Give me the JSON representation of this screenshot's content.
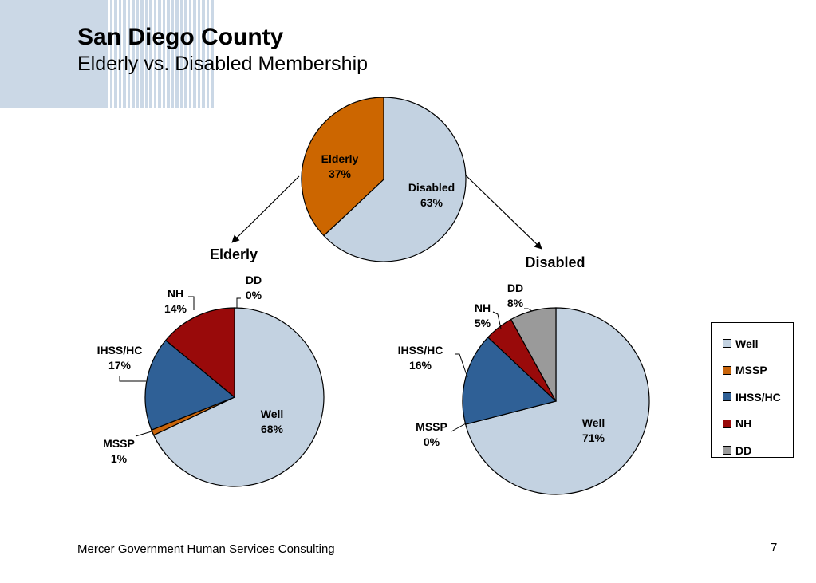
{
  "slide": {
    "title": "San Diego County",
    "subtitle": "Elderly vs. Disabled Membership",
    "footer": "Mercer Government Human Services Consulting",
    "page_number": "7"
  },
  "colors": {
    "Well": "#c3d2e1",
    "MSSP": "#c8640a",
    "IHSS/HC": "#2f6096",
    "NH": "#990a0a",
    "DD": "#9a9a9a",
    "Elderly": "#cc6600",
    "Disabled": "#c3d2e1",
    "decor": "#cbd8e6"
  },
  "legend": {
    "items": [
      "Well",
      "MSSP",
      "IHSS/HC",
      "NH",
      "DD"
    ]
  },
  "chart_data": [
    {
      "id": "overall",
      "type": "pie",
      "title": "",
      "categories": [
        "Disabled",
        "Elderly"
      ],
      "values": [
        63,
        37
      ],
      "labels": [
        "63%",
        "37%"
      ]
    },
    {
      "id": "elderly",
      "type": "pie",
      "title": "Elderly",
      "categories": [
        "Well",
        "MSSP",
        "IHSS/HC",
        "NH",
        "DD"
      ],
      "values": [
        68,
        1,
        17,
        14,
        0
      ],
      "labels": [
        "68%",
        "1%",
        "17%",
        "14%",
        "0%"
      ]
    },
    {
      "id": "disabled",
      "type": "pie",
      "title": "Disabled",
      "categories": [
        "Well",
        "MSSP",
        "IHSS/HC",
        "NH",
        "DD"
      ],
      "values": [
        71,
        0,
        16,
        5,
        8
      ],
      "labels": [
        "71%",
        "0%",
        "16%",
        "5%",
        "8%"
      ]
    }
  ]
}
